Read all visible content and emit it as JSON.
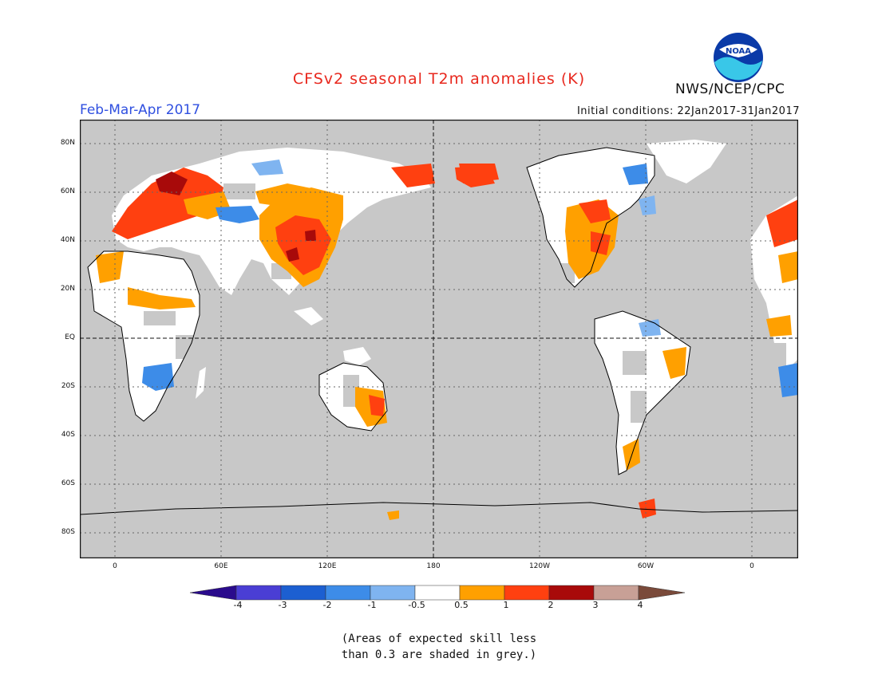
{
  "header": {
    "title": "CFSv2 seasonal T2m anomalies (K)",
    "period": "Feb-Mar-Apr 2017",
    "initial_conditions": "Initial conditions: 22Jan2017-31Jan2017",
    "agency": "NWS/NCEP/CPC",
    "logo_text": "NOAA"
  },
  "map": {
    "lat_labels": [
      "80N",
      "60N",
      "40N",
      "20N",
      "EQ",
      "20S",
      "40S",
      "60S",
      "80S"
    ],
    "lon_labels": [
      "0",
      "60E",
      "120E",
      "180",
      "120W",
      "60W",
      "0"
    ],
    "colors": {
      "grey": "#c8c8c8",
      "ocean": "#c8c8c8",
      "land_white": "#ffffff"
    }
  },
  "colorbar": {
    "labels": [
      "-4",
      "-3",
      "-2",
      "-1",
      "-0.5",
      "0.5",
      "1",
      "2",
      "3",
      "4"
    ],
    "colors": [
      "#2a0b8c",
      "#4a3ed4",
      "#1c5fd1",
      "#3d8ce8",
      "#7fb4f0",
      "#ffffff",
      "#ffa000",
      "#ff4010",
      "#a80a0a",
      "#c8a096",
      "#7a4a3a"
    ]
  },
  "footnote": {
    "line1": "(Areas of expected skill less",
    "line2": "than 0.3 are shaded in grey.)"
  }
}
